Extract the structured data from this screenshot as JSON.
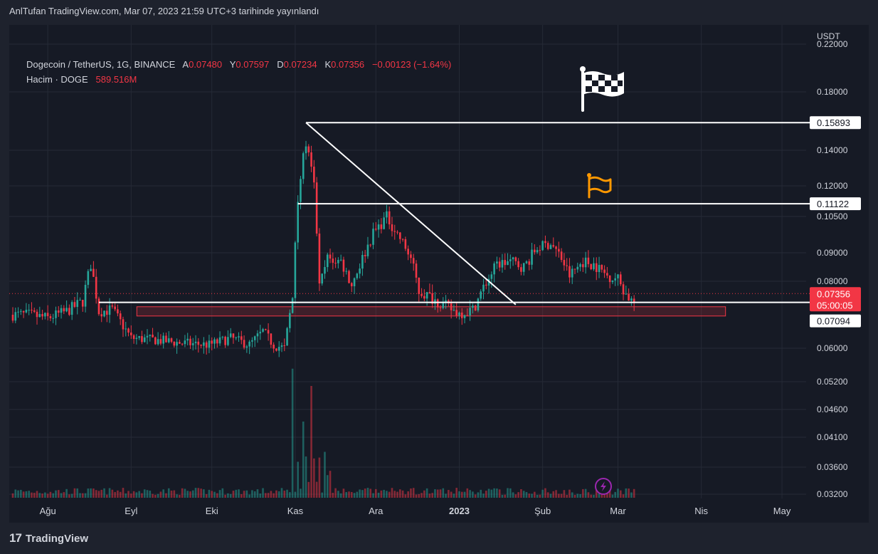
{
  "caption": "AnlTufan TradingView.com, Mar 07, 2023 21:59 UTC+3 tarihinde yayınlandı",
  "legend": {
    "symbol": "Dogecoin / TetherUS, 1G, BINANCE",
    "o_label": "A",
    "o_value": "0.07480",
    "h_label": "Y",
    "h_value": "0.07597",
    "l_label": "D",
    "l_value": "0.07234",
    "c_label": "K",
    "c_value": "0.07356",
    "change": "−0.00123 (−1.64%)",
    "volume_label": "Hacim · DOGE",
    "volume_value": "589.516M"
  },
  "footer": {
    "brand": "TradingView",
    "logo_mark": "17"
  },
  "colors": {
    "up": "#26a69a",
    "down": "#f23645",
    "grid": "#252a36",
    "text": "#d1d4dc",
    "background": "#161a25"
  },
  "icons": [
    "checkered-flag-icon",
    "orange-flag-icon",
    "lightning-icon"
  ],
  "chart_data": {
    "type": "candlestick",
    "currency": "USDT",
    "y_axis_ticks": [
      "0.22000",
      "0.18000",
      "0.14000",
      "0.12000",
      "0.10500",
      "0.09000",
      "0.08000",
      "0.06000",
      "0.05200",
      "0.04600",
      "0.04100",
      "0.03600",
      "0.03200"
    ],
    "x_axis_ticks": [
      "Ağu",
      "Eyl",
      "Eki",
      "Kas",
      "Ara",
      "2023",
      "Şub",
      "Mar",
      "Nis",
      "May"
    ],
    "price_labels": {
      "last_price": "0.07356",
      "countdown": "05:00:05",
      "resistance_1": "0.15893",
      "resistance_2": "0.11122",
      "support": "0.07094"
    },
    "horizontal_levels": [
      0.15893,
      0.11122,
      0.07094
    ],
    "support_zone": [
      0.0693,
      0.0709
    ],
    "trendline": {
      "from": {
        "date": "2022-11-05",
        "price": 0.1589
      },
      "to": {
        "date": "2023-01-22",
        "price": 0.0709
      }
    },
    "anchor_prices": [
      [
        "2022-07-25",
        0.07
      ],
      [
        "2022-08-01",
        0.069
      ],
      [
        "2022-08-08",
        0.071
      ],
      [
        "2022-08-14",
        0.074
      ],
      [
        "2022-08-17",
        0.086
      ],
      [
        "2022-08-20",
        0.071
      ],
      [
        "2022-08-25",
        0.0715
      ],
      [
        "2022-09-01",
        0.063
      ],
      [
        "2022-09-10",
        0.0625
      ],
      [
        "2022-09-20",
        0.0615
      ],
      [
        "2022-09-30",
        0.061
      ],
      [
        "2022-10-08",
        0.063
      ],
      [
        "2022-10-15",
        0.061
      ],
      [
        "2022-10-20",
        0.065
      ],
      [
        "2022-10-24",
        0.061
      ],
      [
        "2022-10-28",
        0.06
      ],
      [
        "2022-10-31",
        0.075
      ],
      [
        "2022-11-02",
        0.115
      ],
      [
        "2022-11-05",
        0.145
      ],
      [
        "2022-11-08",
        0.12
      ],
      [
        "2022-11-10",
        0.078
      ],
      [
        "2022-11-13",
        0.088
      ],
      [
        "2022-11-18",
        0.087
      ],
      [
        "2022-11-22",
        0.079
      ],
      [
        "2022-11-26",
        0.088
      ],
      [
        "2022-11-30",
        0.098
      ],
      [
        "2022-12-05",
        0.105
      ],
      [
        "2022-12-10",
        0.096
      ],
      [
        "2022-12-14",
        0.088
      ],
      [
        "2022-12-17",
        0.077
      ],
      [
        "2022-12-22",
        0.075
      ],
      [
        "2022-12-28",
        0.072
      ],
      [
        "2023-01-01",
        0.0705
      ],
      [
        "2023-01-06",
        0.0715
      ],
      [
        "2023-01-10",
        0.078
      ],
      [
        "2023-01-15",
        0.086
      ],
      [
        "2023-01-20",
        0.087
      ],
      [
        "2023-01-25",
        0.085
      ],
      [
        "2023-01-30",
        0.092
      ],
      [
        "2023-02-04",
        0.094
      ],
      [
        "2023-02-08",
        0.088
      ],
      [
        "2023-02-11",
        0.082
      ],
      [
        "2023-02-16",
        0.087
      ],
      [
        "2023-02-20",
        0.086
      ],
      [
        "2023-02-25",
        0.082
      ],
      [
        "2023-03-01",
        0.081
      ],
      [
        "2023-03-04",
        0.076
      ],
      [
        "2023-03-07",
        0.0736
      ]
    ],
    "volume_spikes": [
      [
        "2022-10-31",
        "max"
      ],
      [
        "2022-11-04",
        "high"
      ],
      [
        "2022-11-07",
        "high"
      ]
    ]
  }
}
